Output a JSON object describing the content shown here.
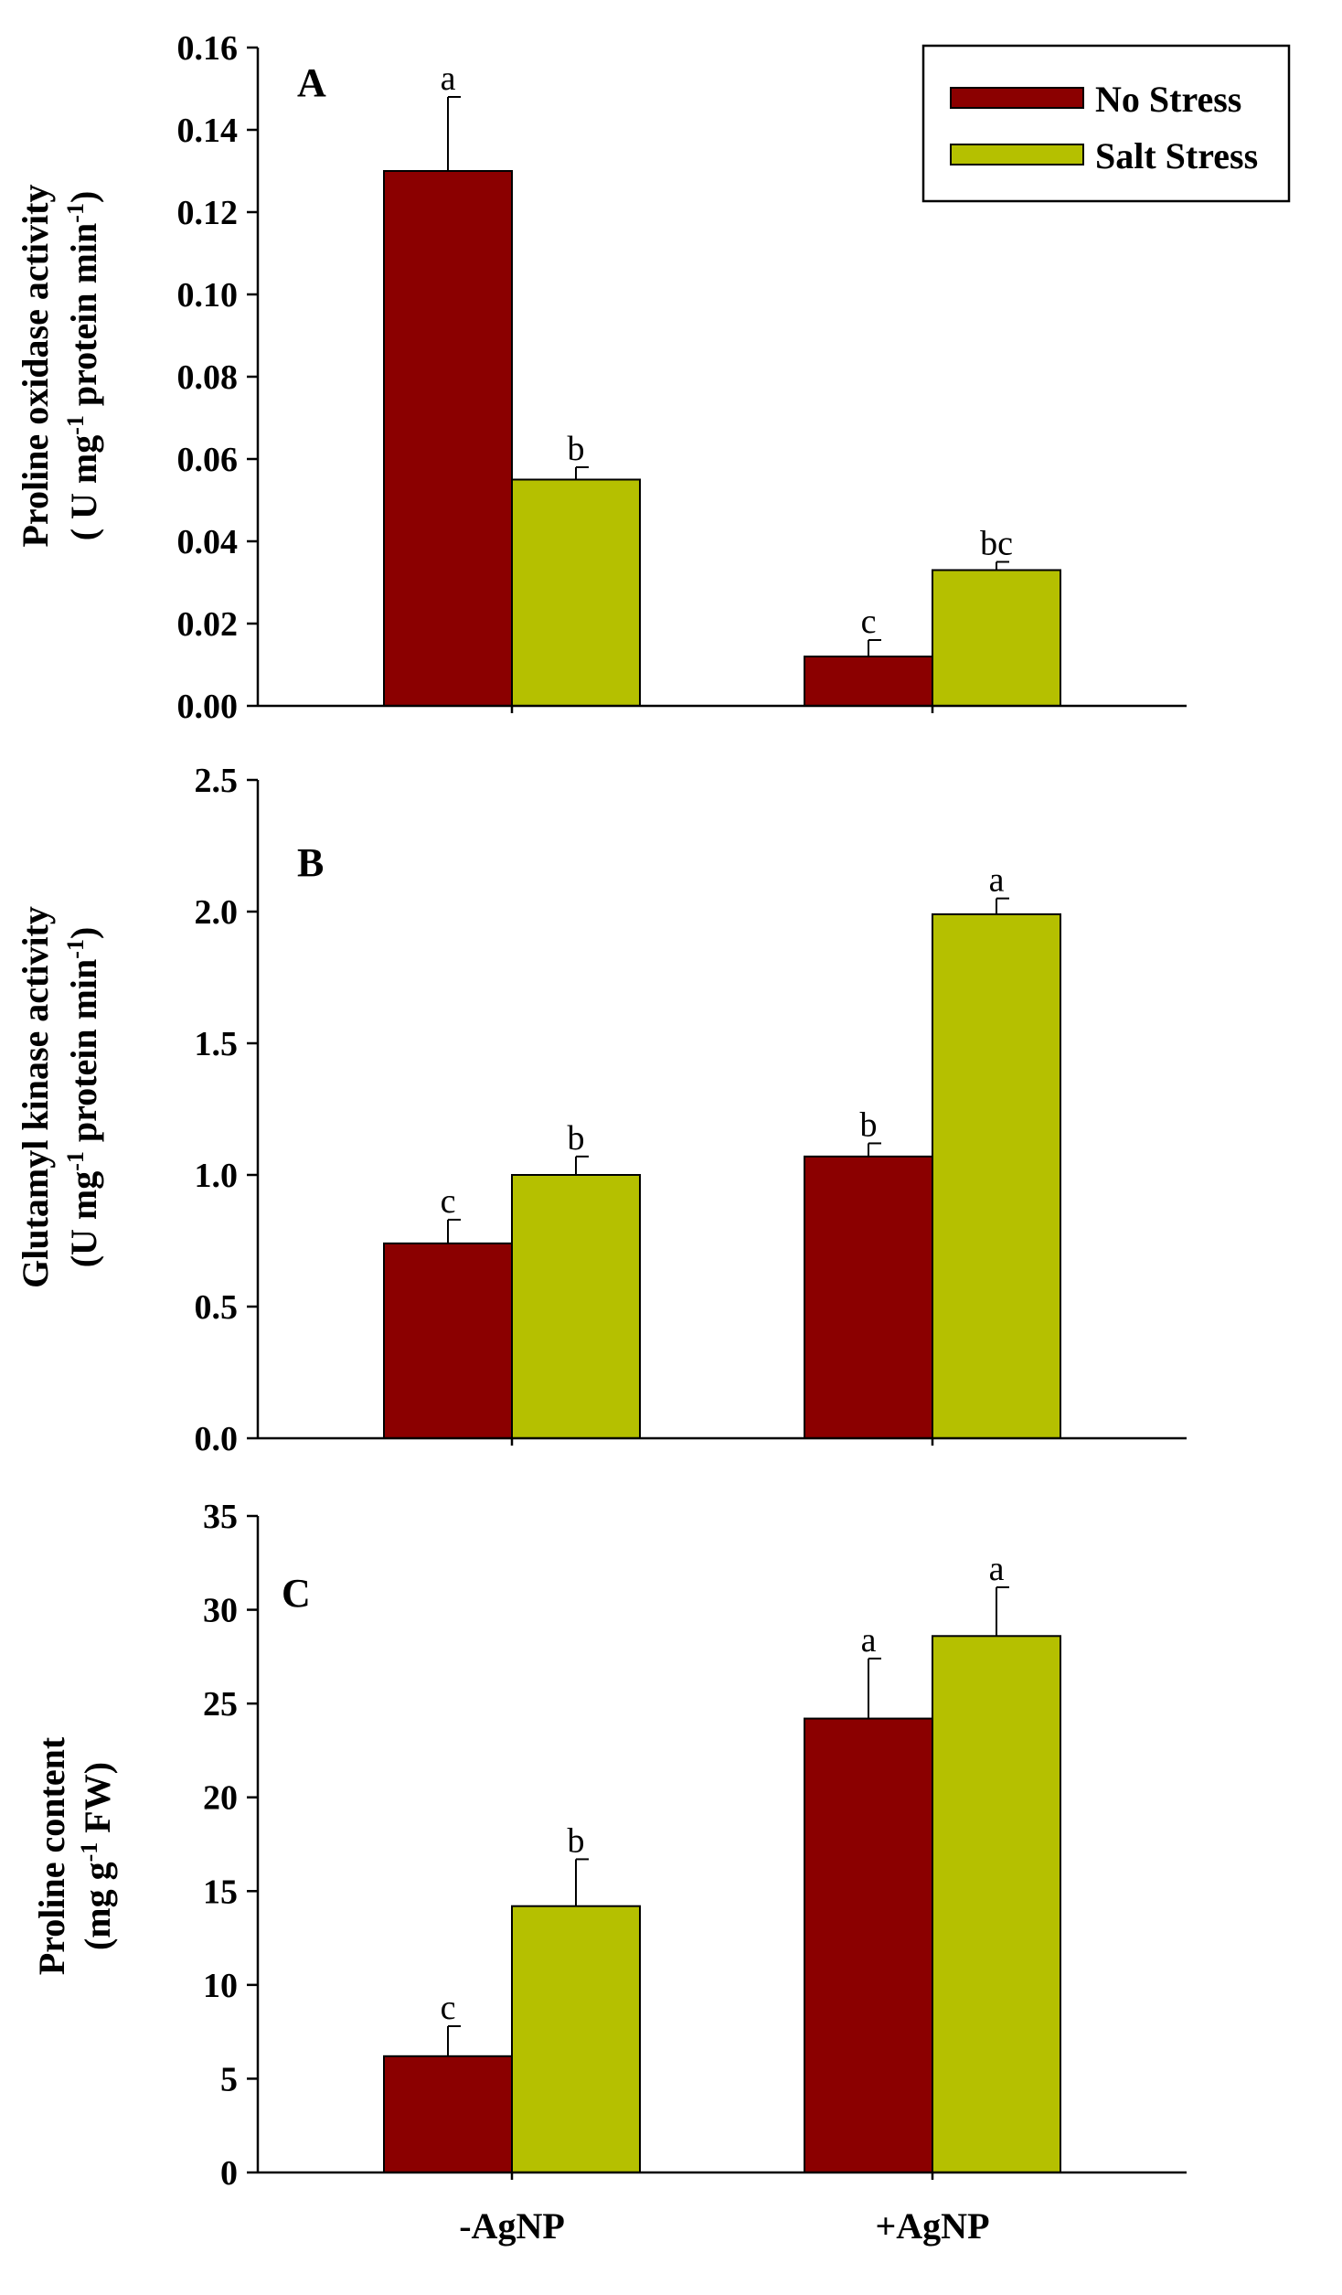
{
  "colors": {
    "no_stress": "#8b0000",
    "salt_stress": "#b5c000"
  },
  "legend": {
    "no_stress_label": "No Stress",
    "salt_stress_label": "Salt Stress"
  },
  "chart_data": [
    {
      "type": "bar",
      "panel": "A",
      "ylabel_line1": "Proline oxidase activity",
      "ylabel_line2_pre": "( U mg",
      "ylabel_line2_sup1": "-1",
      "ylabel_line2_mid": " protein min",
      "ylabel_line2_sup2": "-1",
      "ylabel_line2_post": ")",
      "ylim": [
        0,
        0.16
      ],
      "ticks": [
        "0.00",
        "0.02",
        "0.04",
        "0.06",
        "0.08",
        "0.10",
        "0.12",
        "0.14",
        "0.16"
      ],
      "categories": [
        "-AgNP",
        "+AgNP"
      ],
      "series": [
        {
          "name": "No Stress",
          "values": [
            0.13,
            0.012
          ],
          "errors": [
            0.018,
            0.004
          ],
          "letters": [
            "a",
            "c"
          ]
        },
        {
          "name": "Salt Stress",
          "values": [
            0.055,
            0.033
          ],
          "errors": [
            0.003,
            0.002
          ],
          "letters": [
            "b",
            "bc"
          ]
        }
      ]
    },
    {
      "type": "bar",
      "panel": "B",
      "ylabel_line1": "Glutamyl kinase activity",
      "ylabel_line2_pre": "(U mg",
      "ylabel_line2_sup1": "-1",
      "ylabel_line2_mid": " protein min",
      "ylabel_line2_sup2": "-1",
      "ylabel_line2_post": ")",
      "ylim": [
        0,
        2.5
      ],
      "ticks": [
        "0.0",
        "0.5",
        "1.0",
        "1.5",
        "2.0",
        "2.5"
      ],
      "categories": [
        "-AgNP",
        "+AgNP"
      ],
      "series": [
        {
          "name": "No Stress",
          "values": [
            0.74,
            1.07
          ],
          "errors": [
            0.09,
            0.05
          ],
          "letters": [
            "c",
            "b"
          ]
        },
        {
          "name": "Salt Stress",
          "values": [
            1.0,
            1.99
          ],
          "errors": [
            0.07,
            0.06
          ],
          "letters": [
            "b",
            "a"
          ]
        }
      ]
    },
    {
      "type": "bar",
      "panel": "C",
      "ylabel_line1": "Proline content",
      "ylabel_line2_pre": "(mg g",
      "ylabel_line2_sup1": "-1",
      "ylabel_line2_mid": " FW)",
      "ylabel_line2_sup2": "",
      "ylabel_line2_post": "",
      "ylim": [
        0,
        35
      ],
      "ticks": [
        "0",
        "5",
        "10",
        "15",
        "20",
        "25",
        "30",
        "35"
      ],
      "categories": [
        "-AgNP",
        "+AgNP"
      ],
      "series": [
        {
          "name": "No Stress",
          "values": [
            6.2,
            24.2
          ],
          "errors": [
            1.6,
            3.2
          ],
          "letters": [
            "c",
            "a"
          ]
        },
        {
          "name": "Salt Stress",
          "values": [
            14.2,
            28.6
          ],
          "errors": [
            2.5,
            2.6
          ],
          "letters": [
            "b",
            "a"
          ]
        }
      ]
    }
  ]
}
